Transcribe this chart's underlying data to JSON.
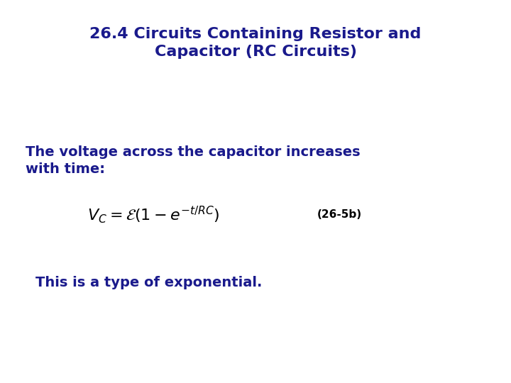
{
  "background_color": "#ffffff",
  "title_line1": "26.4 Circuits Containing Resistor and",
  "title_line2": "Capacitor (RC Circuits)",
  "title_color": "#1a1a8c",
  "title_fontsize": 16,
  "body_color": "#1a1a8c",
  "body_fontsize": 14,
  "text_line1": "The voltage across the capacitor increases",
  "text_line2": "with time:",
  "equation": "$V_C = \\mathcal{E}(1 - e^{-t/RC})$",
  "equation_color": "#000000",
  "equation_fontsize": 16,
  "label": "(26-5b)",
  "label_fontsize": 11,
  "label_color": "#000000",
  "footer": "This is a type of exponential.",
  "footer_color": "#1a1a8c",
  "footer_fontsize": 14
}
